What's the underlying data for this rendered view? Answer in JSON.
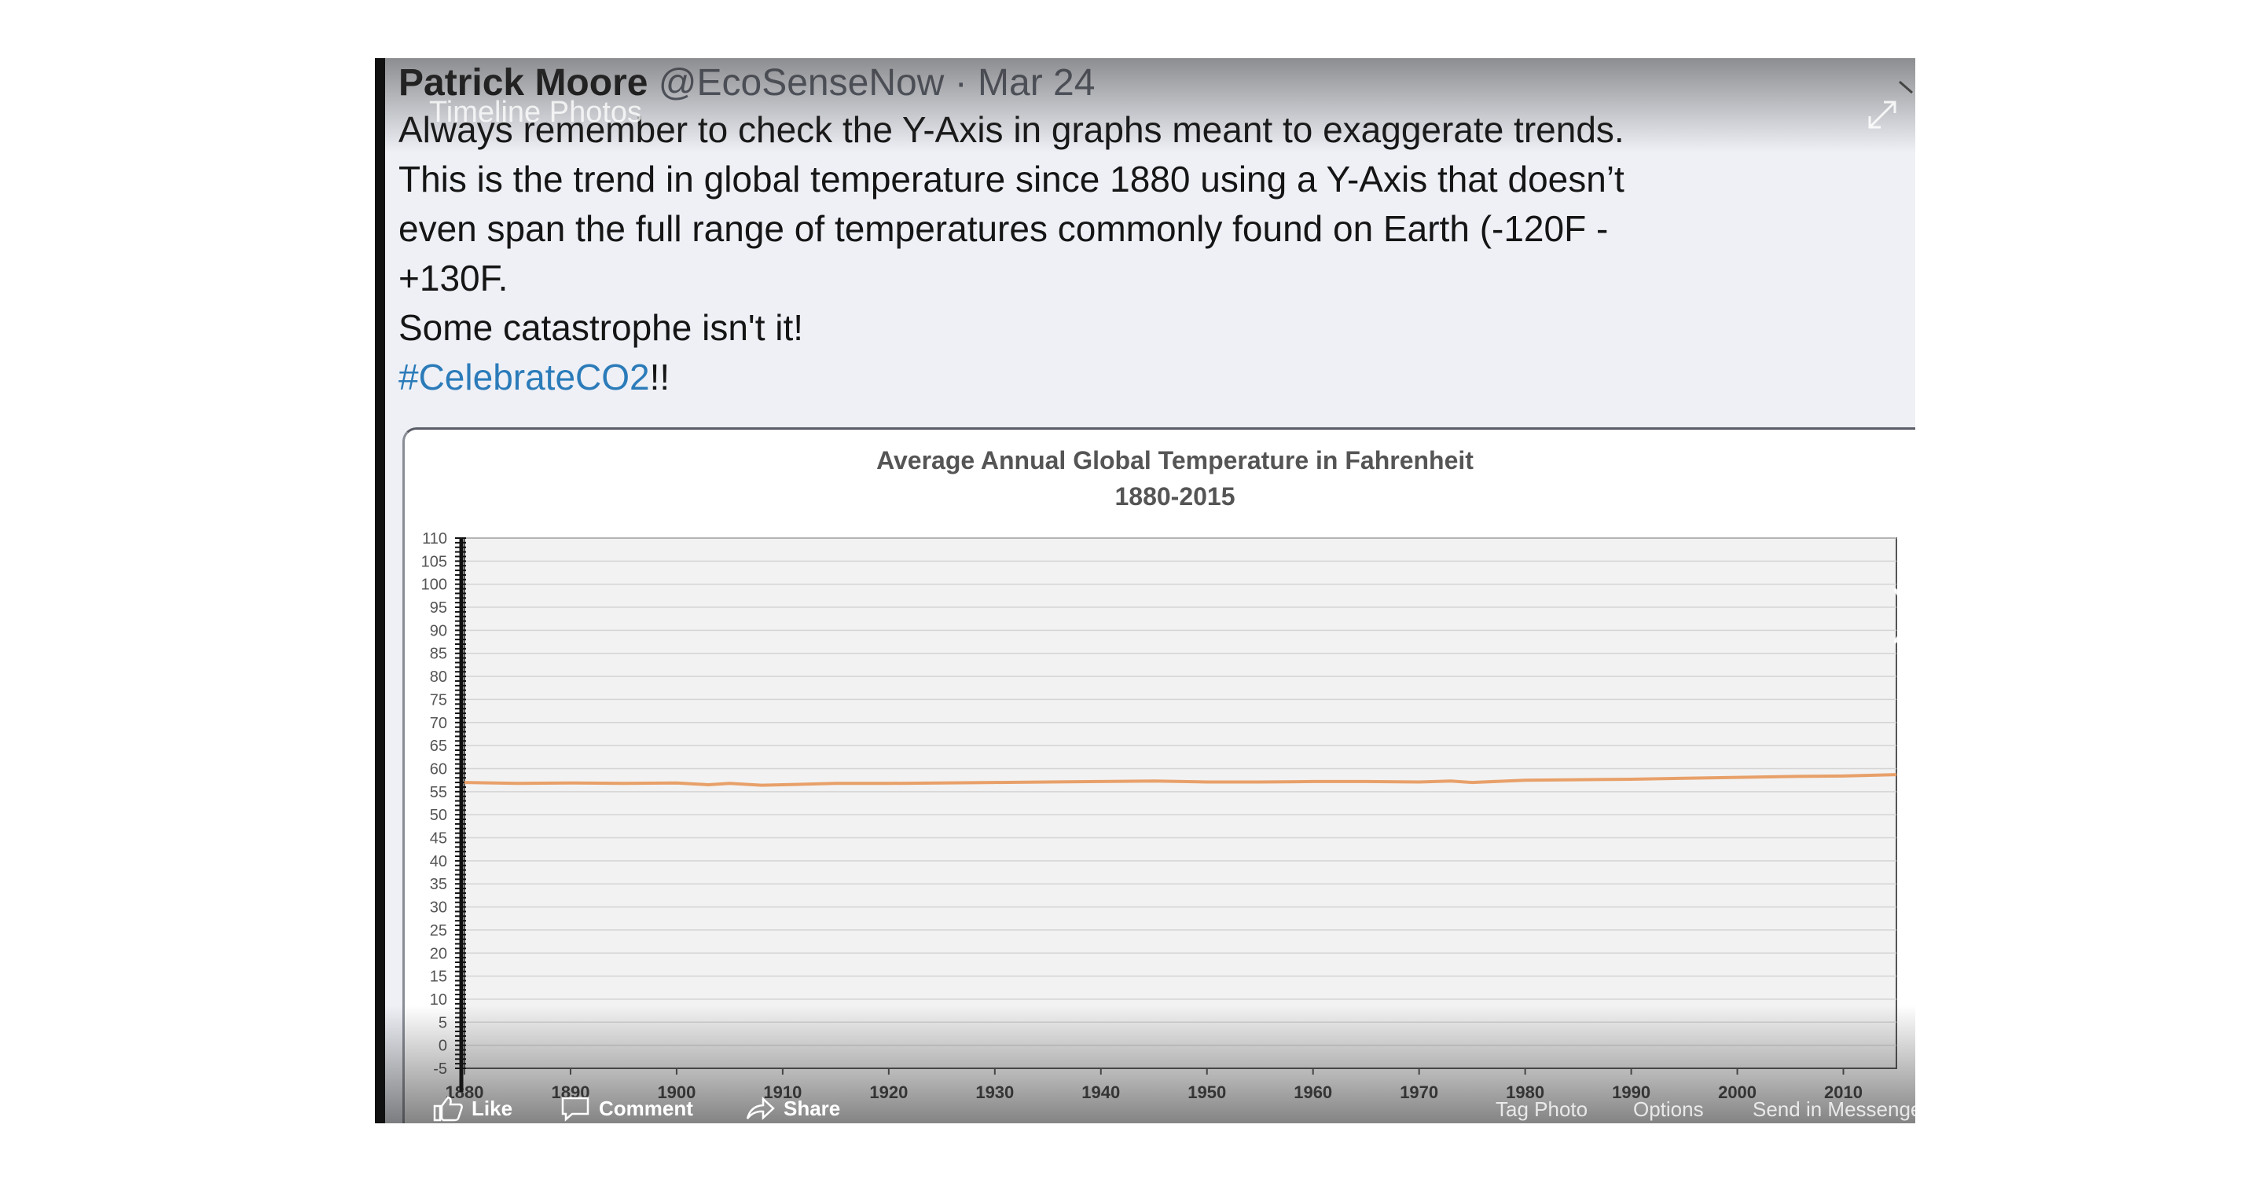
{
  "post": {
    "author_name": "Patrick Moore",
    "handle": "@EcoSenseNow",
    "separator": "·",
    "date": "Mar 24",
    "overlay_title": "Timeline Photos",
    "lines": [
      "Always remember to check the Y-Axis in graphs meant to exaggerate trends.",
      "This is the trend in global temperature since 1880 using a Y-Axis that doesn’t",
      "even span the full range of temperatures commonly found on Earth (-120F -",
      "+130F.",
      "Some catastrophe isn't it!"
    ],
    "hashtag": "#CelebrateCO2",
    "hashtag_suffix": "!!"
  },
  "actions": {
    "like": "Like",
    "comment": "Comment",
    "share": "Share",
    "tag_photo": "Tag Photo",
    "options": "Options",
    "send": "Send in Messenger"
  },
  "icons": {
    "like": "thumbs-up-icon",
    "comment": "speech-bubble-icon",
    "share": "share-arrow-icon",
    "expand": "expand-icon",
    "next": "chevron-right-icon"
  },
  "colors": {
    "line": "#e8a069",
    "hashtag": "#2b7bb9",
    "plot_bg": "#f2f2f2"
  },
  "chart_data": {
    "type": "line",
    "title": "Average Annual Global Temperature in Fahrenheit",
    "subtitle": "1880-2015",
    "xlabel": "",
    "ylabel": "",
    "xlim": [
      1880,
      2015
    ],
    "ylim": [
      -5,
      110
    ],
    "x_ticks": [
      1880,
      1890,
      1900,
      1910,
      1920,
      1930,
      1940,
      1950,
      1960,
      1970,
      1980,
      1990,
      2000,
      2010
    ],
    "x_tick_labels": [
      "1880",
      "1890",
      "1900",
      "1910",
      "1920",
      "1930",
      "1940",
      "1950",
      "1960",
      "1970",
      "1980",
      "1990",
      "2000",
      "2010"
    ],
    "y_ticks": [
      -5,
      0,
      5,
      10,
      15,
      20,
      25,
      30,
      35,
      40,
      45,
      50,
      55,
      60,
      65,
      70,
      75,
      80,
      85,
      90,
      95,
      100,
      105,
      110
    ],
    "y_tick_labels": [
      "-5",
      "0",
      "5",
      "10",
      "15",
      "20",
      "25",
      "30",
      "35",
      "40",
      "45",
      "50",
      "55",
      "60",
      "65",
      "70",
      "75",
      "80",
      "85",
      "90",
      "95",
      "100",
      "105",
      "110"
    ],
    "grid": true,
    "legend": "none",
    "series": [
      {
        "x": [
          1880,
          1885,
          1890,
          1895,
          1900,
          1903,
          1905,
          1908,
          1910,
          1915,
          1920,
          1925,
          1930,
          1935,
          1940,
          1945,
          1950,
          1955,
          1960,
          1965,
          1970,
          1973,
          1975,
          1980,
          1985,
          1990,
          1995,
          2000,
          2005,
          2010,
          2015
        ],
        "values": [
          57.0,
          56.8,
          56.9,
          56.8,
          56.9,
          56.5,
          56.8,
          56.4,
          56.5,
          56.8,
          56.8,
          56.9,
          57.0,
          57.1,
          57.2,
          57.3,
          57.1,
          57.1,
          57.2,
          57.2,
          57.1,
          57.3,
          57.0,
          57.5,
          57.6,
          57.7,
          57.9,
          58.1,
          58.3,
          58.4,
          58.7
        ]
      }
    ]
  }
}
